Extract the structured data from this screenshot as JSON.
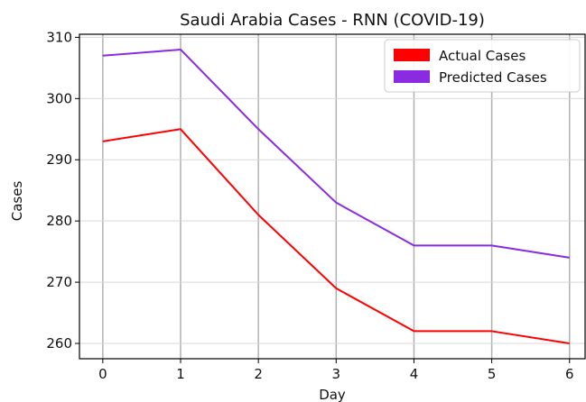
{
  "chart_data": {
    "type": "line",
    "title": "Saudi Arabia Cases  - RNN (COVID-19)",
    "xlabel": "Day",
    "ylabel": "Cases",
    "x": [
      0,
      1,
      2,
      3,
      4,
      5,
      6
    ],
    "xlim": [
      -0.3,
      6.2
    ],
    "ylim": [
      257.5,
      310.5
    ],
    "xticks": [
      0,
      1,
      2,
      3,
      4,
      5,
      6
    ],
    "yticks": [
      260,
      270,
      280,
      290,
      300,
      310
    ],
    "grid": true,
    "legend_position": "top-right",
    "series": [
      {
        "name": "Actual Cases",
        "color": "#ff0000",
        "values": [
          293,
          295,
          281,
          269,
          262,
          262,
          260
        ]
      },
      {
        "name": "Predicted Cases",
        "color": "#8a2be2",
        "values": [
          307,
          308,
          295,
          283,
          276,
          276,
          274
        ]
      }
    ]
  }
}
